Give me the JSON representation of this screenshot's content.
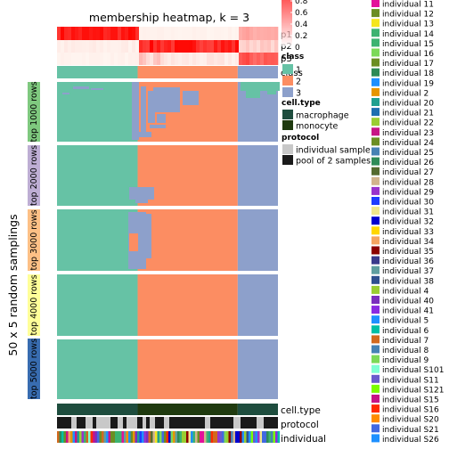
{
  "chart_data": {
    "type": "heatmap",
    "title": "membership heatmap, k = 3",
    "ylabel": "50 x 5 random samplings",
    "row_groups": [
      {
        "label": "top 1000 rows",
        "color": "#7fc97f"
      },
      {
        "label": "top 2000 rows",
        "color": "#beaed4"
      },
      {
        "label": "top 3000 rows",
        "color": "#fdc086"
      },
      {
        "label": "top 4000 rows",
        "color": "#ffff99"
      },
      {
        "label": "top 5000 rows",
        "color": "#386cb0"
      }
    ],
    "column_blocks": [
      {
        "class": "1",
        "fraction": 0.365
      },
      {
        "class": "2",
        "fraction": 0.453
      },
      {
        "class": "3",
        "fraction": 0.182
      }
    ],
    "class_colors": {
      "1": "#66c2a5",
      "2": "#fc8d62",
      "3": "#8da0cb"
    },
    "top_annotation_labels": [
      "p1",
      "p2",
      "p3",
      "class"
    ],
    "bottom_annotation_labels": [
      "cell.type",
      "protocol",
      "individual"
    ],
    "legends": {
      "prob": {
        "ticks": [
          "0.8",
          "0.6",
          "0.4",
          "0.2",
          "0"
        ],
        "low": "#ffffff",
        "high": "#ff0000"
      },
      "class": {
        "title": "class",
        "items": [
          {
            "label": "1",
            "color": "#66c2a5"
          },
          {
            "label": "2",
            "color": "#fc8d62"
          },
          {
            "label": "3",
            "color": "#8da0cb"
          }
        ]
      },
      "cell_type": {
        "title": "cell.type",
        "items": [
          {
            "label": "macrophage",
            "color": "#1e4d3e"
          },
          {
            "label": "monocyte",
            "color": "#1f3a0f"
          }
        ]
      },
      "protocol": {
        "title": "protocol",
        "items": [
          {
            "label": "individual sample",
            "color": "#c8c8c8"
          },
          {
            "label": "pool of 2 samples",
            "color": "#1a1a1a"
          }
        ]
      },
      "individual": {
        "items": [
          {
            "label": "individual 11",
            "color": "#e3119a"
          },
          {
            "label": "individual 12",
            "color": "#6b8e23"
          },
          {
            "label": "individual 13",
            "color": "#f5e61e"
          },
          {
            "label": "individual 14",
            "color": "#3cb371"
          },
          {
            "label": "individual 15",
            "color": "#3cb371"
          },
          {
            "label": "individual 16",
            "color": "#7cd957"
          },
          {
            "label": "individual 17",
            "color": "#6b8e23"
          },
          {
            "label": "individual 18",
            "color": "#2e8b57"
          },
          {
            "label": "individual 19",
            "color": "#1e90ff"
          },
          {
            "label": "individual 2",
            "color": "#e69500"
          },
          {
            "label": "individual 20",
            "color": "#20a090"
          },
          {
            "label": "individual 21",
            "color": "#1e6fb0"
          },
          {
            "label": "individual 22",
            "color": "#9acd32"
          },
          {
            "label": "individual 23",
            "color": "#c71585"
          },
          {
            "label": "individual 24",
            "color": "#6b8e23"
          },
          {
            "label": "individual 25",
            "color": "#4682b4"
          },
          {
            "label": "individual 26",
            "color": "#2e8b57"
          },
          {
            "label": "individual 27",
            "color": "#556b2f"
          },
          {
            "label": "individual 28",
            "color": "#d2b48c"
          },
          {
            "label": "individual 29",
            "color": "#9932cc"
          },
          {
            "label": "individual 30",
            "color": "#1e3cff"
          },
          {
            "label": "individual 31",
            "color": "#f0e68c"
          },
          {
            "label": "individual 32",
            "color": "#0000cd"
          },
          {
            "label": "individual 33",
            "color": "#ffd700"
          },
          {
            "label": "individual 34",
            "color": "#f4a460"
          },
          {
            "label": "individual 35",
            "color": "#8b0000"
          },
          {
            "label": "individual 36",
            "color": "#3a3a8c"
          },
          {
            "label": "individual 37",
            "color": "#5f9ea0"
          },
          {
            "label": "individual 38",
            "color": "#2f4f8f"
          },
          {
            "label": "individual 4",
            "color": "#9acd32"
          },
          {
            "label": "individual 40",
            "color": "#7b2fbe"
          },
          {
            "label": "individual 41",
            "color": "#8a2be2"
          },
          {
            "label": "individual 5",
            "color": "#1e90ff"
          },
          {
            "label": "individual 6",
            "color": "#00bfa5"
          },
          {
            "label": "individual 7",
            "color": "#d2691e"
          },
          {
            "label": "individual 8",
            "color": "#4682b4"
          },
          {
            "label": "individual 9",
            "color": "#7cd957"
          },
          {
            "label": "individual S101",
            "color": "#7fffd4"
          },
          {
            "label": "individual S11",
            "color": "#6a5acd"
          },
          {
            "label": "individual S121",
            "color": "#7cfc00"
          },
          {
            "label": "individual S15",
            "color": "#c71585"
          },
          {
            "label": "individual S16",
            "color": "#ff2a00"
          },
          {
            "label": "individual S20",
            "color": "#ff8c00"
          },
          {
            "label": "individual S21",
            "color": "#4169e1"
          },
          {
            "label": "individual S26",
            "color": "#1e90ff"
          }
        ]
      }
    }
  }
}
